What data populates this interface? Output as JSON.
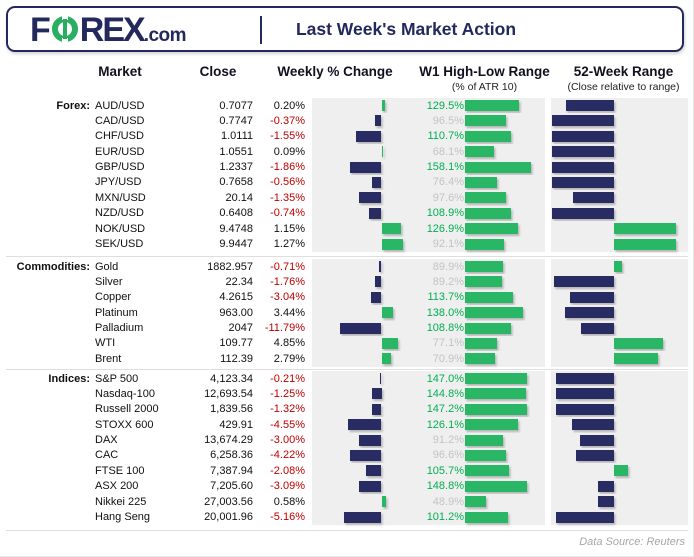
{
  "header": {
    "logo": {
      "f": "F",
      "rex": "REX",
      "com": ".com"
    },
    "title": "Last Week's Market Action"
  },
  "columns": {
    "market": "Market",
    "close": "Close",
    "weekly": "Weekly % Change",
    "w1": "W1 High-Low Range",
    "w1_sub": "(% of ATR 10)",
    "w52": "52-Week Range",
    "w52_sub": "(Close relative to range)"
  },
  "footer": {
    "source": "Data Source: Reuters"
  },
  "colors": {
    "navy": "#282c62",
    "green": "#29b765",
    "green_text": "#00b050",
    "gray_text": "#c3c3c3",
    "red_text": "#c00000",
    "panel_bg": "#efeff0"
  },
  "chart_data": {
    "type": "table",
    "note_weekly": "Weekly % Change bar chart: green = positive, navy = negative, per-section scale",
    "note_w1": "W1 High-Low Range as % of ATR 10, green bars; label green if >= 100%, gray if < 100%",
    "note_w52": "52-Week Range: bar drawn between close position (% of range, estimated) and mid-range; navy below mid, green above mid",
    "sections": [
      {
        "label": "Forex:",
        "rows": [
          {
            "market": "AUD/USD",
            "close": "0.7077",
            "weekly_change": "0.20%",
            "w1_range": "129.5%",
            "close_vs_52w_range_pct": 11
          },
          {
            "market": "CAD/USD",
            "close": "0.7747",
            "weekly_change": "-0.37%",
            "w1_range": "96.5%",
            "close_vs_52w_range_pct": 1
          },
          {
            "market": "CHF/USD",
            "close": "1.0111",
            "weekly_change": "-1.55%",
            "w1_range": "110.7%",
            "close_vs_52w_range_pct": 1
          },
          {
            "market": "EUR/USD",
            "close": "1.0551",
            "weekly_change": "0.09%",
            "w1_range": "68.1%",
            "close_vs_52w_range_pct": 1
          },
          {
            "market": "GBP/USD",
            "close": "1.2337",
            "weekly_change": "-1.86%",
            "w1_range": "158.1%",
            "close_vs_52w_range_pct": 1
          },
          {
            "market": "JPY/USD",
            "close": "0.7658",
            "weekly_change": "-0.56%",
            "w1_range": "76.4%",
            "close_vs_52w_range_pct": 1
          },
          {
            "market": "MXN/USD",
            "close": "20.14",
            "weekly_change": "-1.35%",
            "w1_range": "97.6%",
            "close_vs_52w_range_pct": 16
          },
          {
            "market": "NZD/USD",
            "close": "0.6408",
            "weekly_change": "-0.74%",
            "w1_range": "108.9%",
            "close_vs_52w_range_pct": 1
          },
          {
            "market": "NOK/USD",
            "close": "9.4748",
            "weekly_change": "1.15%",
            "w1_range": "126.9%",
            "close_vs_52w_range_pct": 91
          },
          {
            "market": "SEK/USD",
            "close": "9.9447",
            "weekly_change": "1.27%",
            "w1_range": "92.1%",
            "close_vs_52w_range_pct": 91
          }
        ]
      },
      {
        "label": "Commodities:",
        "rows": [
          {
            "market": "Gold",
            "close": "1882.957",
            "weekly_change": "-0.71%",
            "w1_range": "89.9%",
            "close_vs_52w_range_pct": 52
          },
          {
            "market": "Silver",
            "close": "22.34",
            "weekly_change": "-1.76%",
            "w1_range": "89.2%",
            "close_vs_52w_range_pct": 2
          },
          {
            "market": "Copper",
            "close": "4.2615",
            "weekly_change": "-3.04%",
            "w1_range": "113.7%",
            "close_vs_52w_range_pct": 14
          },
          {
            "market": "Platinum",
            "close": "963.00",
            "weekly_change": "3.44%",
            "w1_range": "138.0%",
            "close_vs_52w_range_pct": 10
          },
          {
            "market": "Palladium",
            "close": "2047",
            "weekly_change": "-11.79%",
            "w1_range": "108.8%",
            "close_vs_52w_range_pct": 22
          },
          {
            "market": "WTI",
            "close": "109.77",
            "weekly_change": "4.85%",
            "w1_range": "77.1%",
            "close_vs_52w_range_pct": 82
          },
          {
            "market": "Brent",
            "close": "112.39",
            "weekly_change": "2.79%",
            "w1_range": "70.9%",
            "close_vs_52w_range_pct": 78
          }
        ]
      },
      {
        "label": "Indices:",
        "rows": [
          {
            "market": "S&P 500",
            "close": "4,123.34",
            "weekly_change": "-0.21%",
            "w1_range": "147.0%",
            "close_vs_52w_range_pct": 4
          },
          {
            "market": "Nasdaq-100",
            "close": "12,693.54",
            "weekly_change": "-1.25%",
            "w1_range": "144.8%",
            "close_vs_52w_range_pct": 4
          },
          {
            "market": "Russell 2000",
            "close": "1,839.56",
            "weekly_change": "-1.32%",
            "w1_range": "147.2%",
            "close_vs_52w_range_pct": 4
          },
          {
            "market": "STOXX 600",
            "close": "429.91",
            "weekly_change": "-4.55%",
            "w1_range": "126.1%",
            "close_vs_52w_range_pct": 15
          },
          {
            "market": "DAX",
            "close": "13,674.29",
            "weekly_change": "-3.00%",
            "w1_range": "91.2%",
            "close_vs_52w_range_pct": 21
          },
          {
            "market": "CAC",
            "close": "6,258.36",
            "weekly_change": "-4.22%",
            "w1_range": "96.6%",
            "close_vs_52w_range_pct": 18
          },
          {
            "market": "FTSE 100",
            "close": "7,387.94",
            "weekly_change": "-2.08%",
            "w1_range": "105.7%",
            "close_vs_52w_range_pct": 56
          },
          {
            "market": "ASX 200",
            "close": "7,205.60",
            "weekly_change": "-3.09%",
            "w1_range": "148.8%",
            "close_vs_52w_range_pct": 34
          },
          {
            "market": "Nikkei 225",
            "close": "27,003.56",
            "weekly_change": "0.58%",
            "w1_range": "48.9%",
            "close_vs_52w_range_pct": 34
          },
          {
            "market": "Hang Seng",
            "close": "20,001.96",
            "weekly_change": "-5.16%",
            "w1_range": "101.2%",
            "close_vs_52w_range_pct": 4
          }
        ]
      }
    ]
  }
}
